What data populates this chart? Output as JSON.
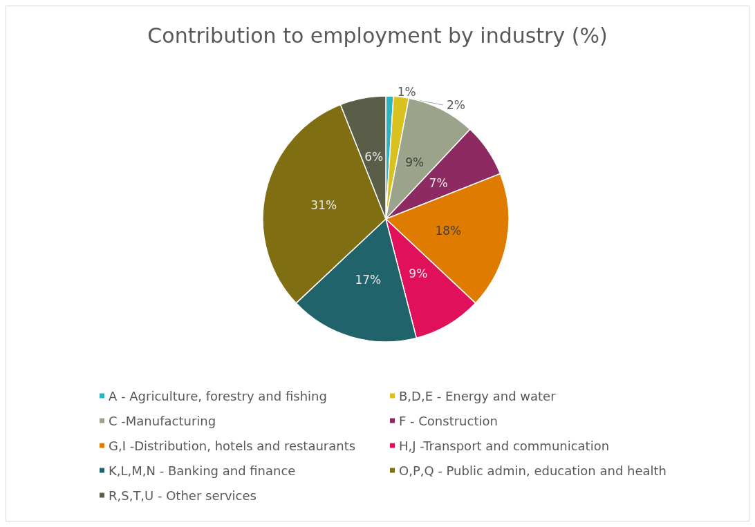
{
  "chart_data": {
    "type": "pie",
    "title": "Contribution to employment by industry (%)",
    "categories": [
      "A - Agriculture, forestry and fishing",
      "B,D,E - Energy and water",
      "C -Manufacturing",
      "F - Construction",
      "G,I -Distribution, hotels and restaurants",
      "H,J -Transport and communication",
      "K,L,M,N - Banking and finance",
      "O,P,Q - Public admin, education and health",
      "R,S,T,U - Other services"
    ],
    "values": [
      1,
      2,
      9,
      7,
      18,
      9,
      17,
      31,
      6
    ],
    "value_labels": [
      "1%",
      "2%",
      "9%",
      "7%",
      "18%",
      "9%",
      "17%",
      "31%",
      "6%"
    ],
    "colors": [
      "#2bb3c0",
      "#d9c21f",
      "#9ba48a",
      "#8e2a62",
      "#df7c00",
      "#e0105a",
      "#21636b",
      "#7f6e12",
      "#5a5e48"
    ],
    "legend": "bottom"
  }
}
